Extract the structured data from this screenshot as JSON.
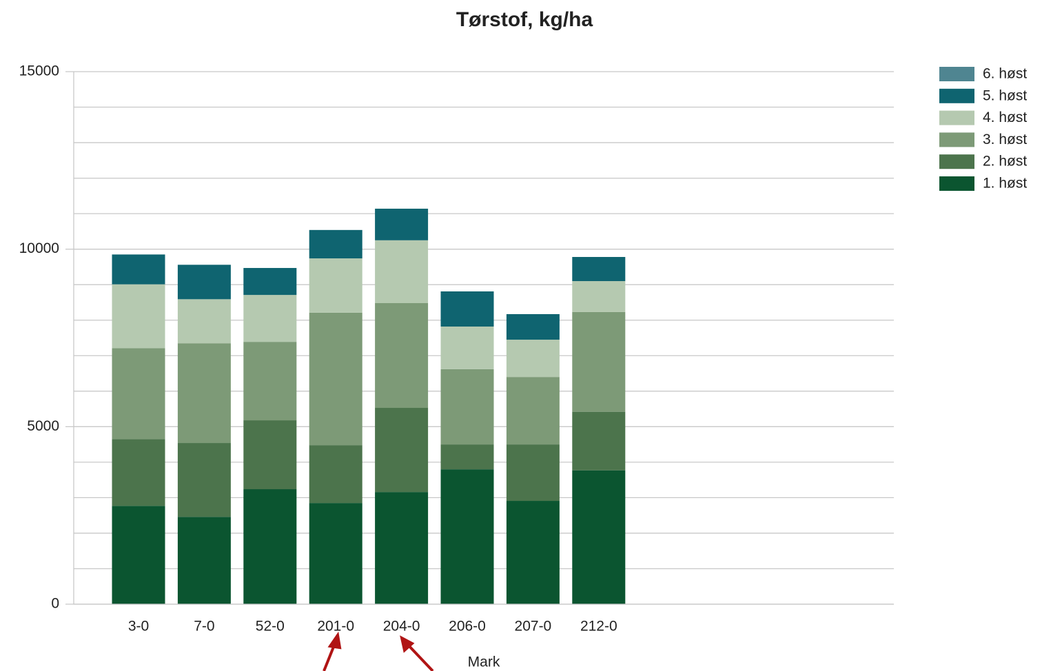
{
  "chart_data": {
    "type": "stacked_bar",
    "title": "Tørstof, kg/ha",
    "x_label": "Mark",
    "categories": [
      "3-0",
      "7-0",
      "52-0",
      "201-0",
      "204-0",
      "206-0",
      "207-0",
      "212-0"
    ],
    "series": [
      {
        "name": "1. høst",
        "color": "#0b5530",
        "values": [
          2770,
          2460,
          3240,
          2850,
          3160,
          3800,
          2910,
          3770
        ]
      },
      {
        "name": "2. høst",
        "color": "#4c744c",
        "values": [
          1880,
          2080,
          1940,
          1630,
          2370,
          700,
          1590,
          1650
        ]
      },
      {
        "name": "3. høst",
        "color": "#7d9a77",
        "values": [
          2560,
          2810,
          2210,
          3730,
          2950,
          2120,
          1900,
          2810
        ]
      },
      {
        "name": "4. høst",
        "color": "#b5c9b0",
        "values": [
          1800,
          1240,
          1320,
          1530,
          1770,
          1200,
          1050,
          870
        ]
      },
      {
        "name": "5. høst",
        "color": "#0f6470",
        "values": [
          840,
          970,
          760,
          800,
          890,
          990,
          720,
          680
        ]
      },
      {
        "name": "6. høst",
        "color": "#4f8591",
        "values": [
          0,
          0,
          0,
          0,
          0,
          0,
          0,
          0
        ]
      }
    ],
    "ylim": [
      0,
      15000
    ],
    "yticks": [
      0,
      5000,
      10000,
      15000
    ],
    "minor_yticks": [
      1000,
      2000,
      3000,
      4000,
      6000,
      7000,
      8000,
      9000,
      11000,
      12000,
      13000,
      14000
    ],
    "grid": true,
    "legend": "right"
  }
}
